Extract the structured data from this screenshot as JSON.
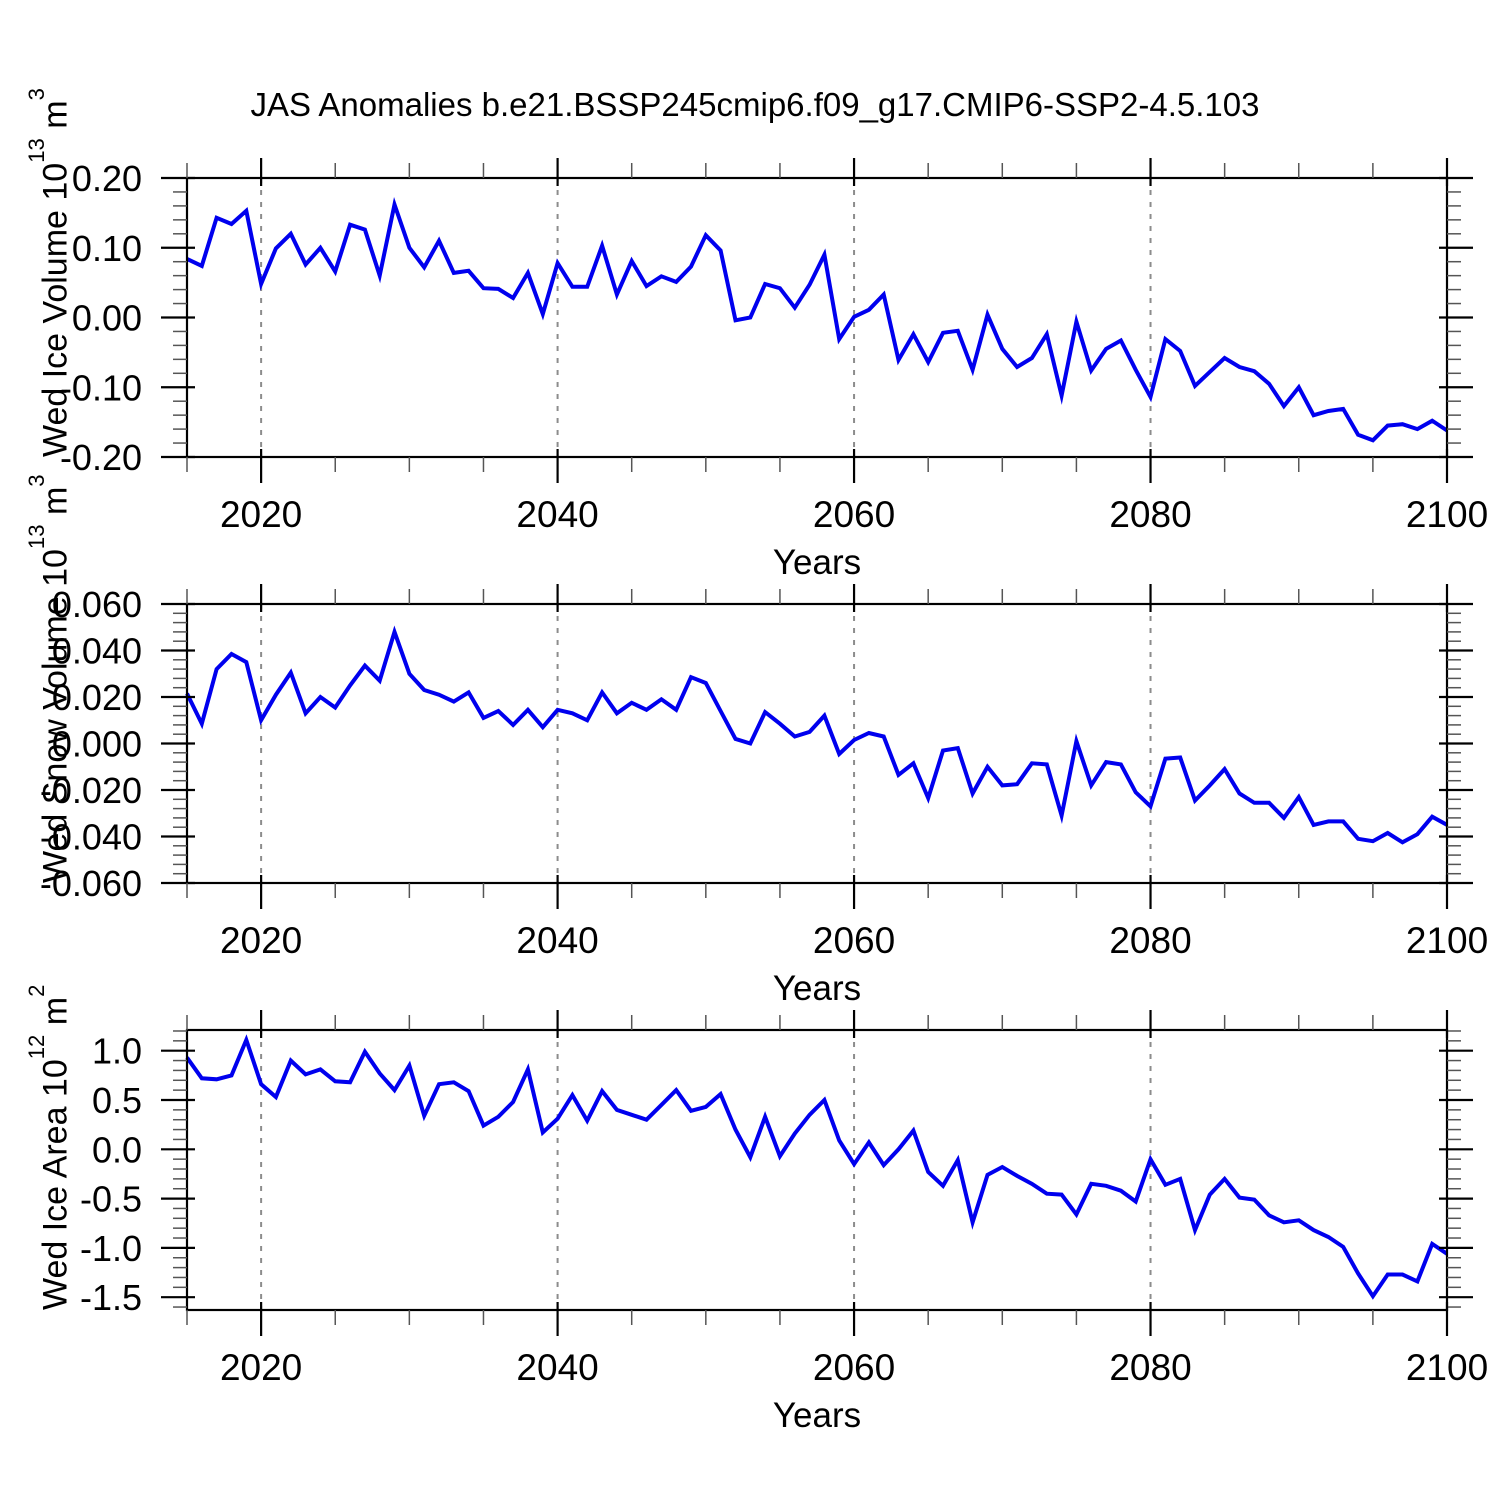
{
  "figure": {
    "title": "JAS Anomalies b.e21.BSSP245cmip6.f09_g17.CMIP6-SSP2-4.5.103",
    "background": "#ffffff",
    "line_color": "#0000ee",
    "grid_color": "#8c8c8c",
    "minor_tick_color": "#555555",
    "axis_color": "#000000"
  },
  "chart_data": [
    {
      "type": "line",
      "name": "wed-ice-volume",
      "xlabel": "Years",
      "ylabel": {
        "text": "Wed Ice Volume 10",
        "exp": "13",
        "unit": " m",
        "unit_exp": "3"
      },
      "xlim": [
        2015,
        2100
      ],
      "ylim": [
        -0.2,
        0.2
      ],
      "xticks": [
        2020,
        2040,
        2060,
        2080,
        2100
      ],
      "xtick_labels": [
        "2020",
        "2040",
        "2060",
        "2080",
        "2100"
      ],
      "xtick_minor_step": 5,
      "gridlines_x": [
        2020,
        2040,
        2060,
        2080
      ],
      "yticks": [
        0.2,
        0.1,
        0.0,
        -0.1,
        -0.2
      ],
      "ytick_labels": [
        "0.20",
        "0.10",
        "0.00",
        "-0.10",
        "-0.20"
      ],
      "ytick_minor_step": 0.02,
      "legend": "none",
      "grid": "vertical-dashed",
      "x": [
        2015,
        2016,
        2017,
        2018,
        2019,
        2020,
        2021,
        2022,
        2023,
        2024,
        2025,
        2026,
        2027,
        2028,
        2029,
        2030,
        2031,
        2032,
        2033,
        2034,
        2035,
        2036,
        2037,
        2038,
        2039,
        2040,
        2041,
        2042,
        2043,
        2044,
        2045,
        2046,
        2047,
        2048,
        2049,
        2050,
        2051,
        2052,
        2053,
        2054,
        2055,
        2056,
        2057,
        2058,
        2059,
        2060,
        2061,
        2062,
        2063,
        2064,
        2065,
        2066,
        2067,
        2068,
        2069,
        2070,
        2071,
        2072,
        2073,
        2074,
        2075,
        2076,
        2077,
        2078,
        2079,
        2080,
        2081,
        2082,
        2083,
        2084,
        2085,
        2086,
        2087,
        2088,
        2089,
        2090,
        2091,
        2092,
        2093,
        2094,
        2095,
        2096,
        2097,
        2098,
        2099,
        2100
      ],
      "values": [
        0.084,
        0.074,
        0.143,
        0.134,
        0.153,
        0.048,
        0.099,
        0.12,
        0.076,
        0.1,
        0.066,
        0.133,
        0.126,
        0.06,
        0.162,
        0.1,
        0.072,
        0.11,
        0.064,
        0.067,
        0.042,
        0.041,
        0.028,
        0.064,
        0.005,
        0.078,
        0.044,
        0.044,
        0.103,
        0.033,
        0.081,
        0.045,
        0.059,
        0.051,
        0.073,
        0.118,
        0.096,
        -0.004,
        0.0,
        0.048,
        0.042,
        0.014,
        0.047,
        0.09,
        -0.031,
        0.001,
        0.011,
        0.033,
        -0.061,
        -0.024,
        -0.064,
        -0.022,
        -0.019,
        -0.075,
        0.004,
        -0.045,
        -0.071,
        -0.058,
        -0.024,
        -0.112,
        -0.006,
        -0.076,
        -0.045,
        -0.033,
        -0.075,
        -0.114,
        -0.031,
        -0.048,
        -0.098,
        -0.078,
        -0.058,
        -0.071,
        -0.077,
        -0.095,
        -0.127,
        -0.1,
        -0.14,
        -0.134,
        -0.131,
        -0.168,
        -0.176,
        -0.155,
        -0.153,
        -0.16,
        -0.148,
        -0.162
      ]
    },
    {
      "type": "line",
      "name": "wed-snow-volume",
      "xlabel": "Years",
      "ylabel": {
        "text": "Wed Snow Volume 10",
        "exp": "13",
        "unit": " m",
        "unit_exp": "3"
      },
      "xlim": [
        2015,
        2100
      ],
      "ylim": [
        -0.06,
        0.06
      ],
      "xticks": [
        2020,
        2040,
        2060,
        2080,
        2100
      ],
      "xtick_labels": [
        "2020",
        "2040",
        "2060",
        "2080",
        "2100"
      ],
      "xtick_minor_step": 5,
      "gridlines_x": [
        2020,
        2040,
        2060,
        2080
      ],
      "yticks": [
        0.06,
        0.04,
        0.02,
        0.0,
        -0.02,
        -0.04,
        -0.06
      ],
      "ytick_labels": [
        "0.060",
        "0.040",
        "0.020",
        "0.000",
        "-0.020",
        "-0.040",
        "-0.060"
      ],
      "ytick_minor_step": 0.004,
      "legend": "none",
      "grid": "vertical-dashed",
      "x": [
        2015,
        2016,
        2017,
        2018,
        2019,
        2020,
        2021,
        2022,
        2023,
        2024,
        2025,
        2026,
        2027,
        2028,
        2029,
        2030,
        2031,
        2032,
        2033,
        2034,
        2035,
        2036,
        2037,
        2038,
        2039,
        2040,
        2041,
        2042,
        2043,
        2044,
        2045,
        2046,
        2047,
        2048,
        2049,
        2050,
        2051,
        2052,
        2053,
        2054,
        2055,
        2056,
        2057,
        2058,
        2059,
        2060,
        2061,
        2062,
        2063,
        2064,
        2065,
        2066,
        2067,
        2068,
        2069,
        2070,
        2071,
        2072,
        2073,
        2074,
        2075,
        2076,
        2077,
        2078,
        2079,
        2080,
        2081,
        2082,
        2083,
        2084,
        2085,
        2086,
        2087,
        2088,
        2089,
        2090,
        2091,
        2092,
        2093,
        2094,
        2095,
        2096,
        2097,
        2098,
        2099,
        2100
      ],
      "values": [
        0.0215,
        0.0085,
        0.032,
        0.0385,
        0.035,
        0.01,
        0.021,
        0.0305,
        0.013,
        0.02,
        0.0155,
        0.025,
        0.0335,
        0.027,
        0.048,
        0.03,
        0.023,
        0.021,
        0.018,
        0.022,
        0.011,
        0.014,
        0.008,
        0.0145,
        0.007,
        0.0145,
        0.013,
        0.01,
        0.022,
        0.013,
        0.0175,
        0.0145,
        0.019,
        0.0145,
        0.0285,
        0.026,
        0.014,
        0.002,
        0.0,
        0.0135,
        0.0085,
        0.003,
        0.005,
        0.012,
        -0.0045,
        0.0015,
        0.0045,
        0.003,
        -0.0135,
        -0.0085,
        -0.0235,
        -0.003,
        -0.002,
        -0.0215,
        -0.01,
        -0.018,
        -0.0175,
        -0.0085,
        -0.009,
        -0.031,
        0.001,
        -0.018,
        -0.008,
        -0.009,
        -0.021,
        -0.027,
        -0.0065,
        -0.006,
        -0.0245,
        -0.018,
        -0.011,
        -0.0215,
        -0.0255,
        -0.0255,
        -0.032,
        -0.023,
        -0.035,
        -0.0335,
        -0.0335,
        -0.041,
        -0.042,
        -0.0385,
        -0.0425,
        -0.039,
        -0.0315,
        -0.035
      ]
    },
    {
      "type": "line",
      "name": "wed-ice-area",
      "xlabel": "Years",
      "ylabel": {
        "text": "Wed Ice Area 10",
        "exp": "12",
        "unit": " m",
        "unit_exp": "2"
      },
      "xlim": [
        2015,
        2100
      ],
      "ylim": [
        -1.63,
        1.21
      ],
      "xticks": [
        2020,
        2040,
        2060,
        2080,
        2100
      ],
      "xtick_labels": [
        "2020",
        "2040",
        "2060",
        "2080",
        "2100"
      ],
      "xtick_minor_step": 5,
      "gridlines_x": [
        2020,
        2040,
        2060,
        2080
      ],
      "yticks": [
        1.0,
        0.5,
        0.0,
        -0.5,
        -1.0,
        -1.5
      ],
      "ytick_labels": [
        "1.0",
        "0.5",
        "0.0",
        "-0.5",
        "-1.0",
        "-1.5"
      ],
      "ytick_minor_step": 0.1,
      "legend": "none",
      "grid": "vertical-dashed",
      "x": [
        2015,
        2016,
        2017,
        2018,
        2019,
        2020,
        2021,
        2022,
        2023,
        2024,
        2025,
        2026,
        2027,
        2028,
        2029,
        2030,
        2031,
        2032,
        2033,
        2034,
        2035,
        2036,
        2037,
        2038,
        2039,
        2040,
        2041,
        2042,
        2043,
        2044,
        2045,
        2046,
        2047,
        2048,
        2049,
        2050,
        2051,
        2052,
        2053,
        2054,
        2055,
        2056,
        2057,
        2058,
        2059,
        2060,
        2061,
        2062,
        2063,
        2064,
        2065,
        2066,
        2067,
        2068,
        2069,
        2070,
        2071,
        2072,
        2073,
        2074,
        2075,
        2076,
        2077,
        2078,
        2079,
        2080,
        2081,
        2082,
        2083,
        2084,
        2085,
        2086,
        2087,
        2088,
        2089,
        2090,
        2091,
        2092,
        2093,
        2094,
        2095,
        2096,
        2097,
        2098,
        2099,
        2100
      ],
      "values": [
        0.93,
        0.72,
        0.71,
        0.75,
        1.11,
        0.66,
        0.53,
        0.9,
        0.76,
        0.81,
        0.69,
        0.68,
        0.99,
        0.77,
        0.6,
        0.85,
        0.34,
        0.66,
        0.68,
        0.59,
        0.24,
        0.33,
        0.48,
        0.81,
        0.17,
        0.31,
        0.55,
        0.29,
        0.59,
        0.4,
        0.35,
        0.3,
        0.45,
        0.6,
        0.39,
        0.43,
        0.56,
        0.2,
        -0.08,
        0.33,
        -0.07,
        0.16,
        0.35,
        0.5,
        0.09,
        -0.15,
        0.07,
        -0.16,
        0.0,
        0.19,
        -0.23,
        -0.37,
        -0.11,
        -0.74,
        -0.26,
        -0.18,
        -0.27,
        -0.35,
        -0.45,
        -0.46,
        -0.66,
        -0.35,
        -0.37,
        -0.42,
        -0.53,
        -0.1,
        -0.36,
        -0.3,
        -0.82,
        -0.46,
        -0.3,
        -0.49,
        -0.51,
        -0.67,
        -0.74,
        -0.72,
        -0.82,
        -0.89,
        -0.99,
        -1.26,
        -1.49,
        -1.27,
        -1.27,
        -1.34,
        -0.96,
        -1.06
      ]
    }
  ]
}
